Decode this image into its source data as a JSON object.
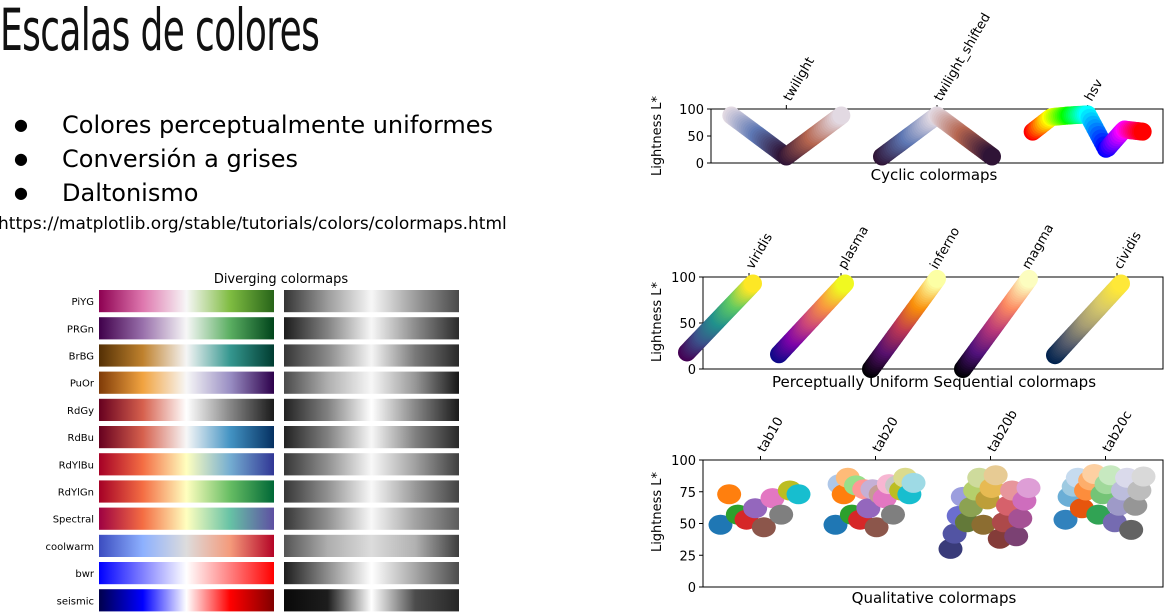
{
  "slide": {
    "title": "Escalas de colores",
    "bullets": [
      "Colores perceptualmente uniformes",
      "Conversión a grises",
      "Daltonismo"
    ],
    "url": "https://matplotlib.org/stable/tutorials/colors/colormaps.html"
  },
  "chart_data": [
    {
      "type": "heatmap",
      "title": "Diverging colormaps",
      "rows": [
        "PiYG",
        "PRGn",
        "BrBG",
        "PuOr",
        "RdGy",
        "RdBu",
        "RdYlBu",
        "RdYlGn",
        "Spectral",
        "coolwarm",
        "bwr",
        "seismic"
      ],
      "stops": [
        [
          "#8e0152",
          "#de77ae",
          "#f7f7f7",
          "#7fbc41",
          "#276419"
        ],
        [
          "#40004b",
          "#9970ab",
          "#f7f7f7",
          "#5aae61",
          "#00441b"
        ],
        [
          "#543005",
          "#bf812d",
          "#f5f5f5",
          "#35978f",
          "#003c30"
        ],
        [
          "#7f3b08",
          "#f1a340",
          "#f7f7f7",
          "#998ec3",
          "#2d004b"
        ],
        [
          "#67001f",
          "#d6604d",
          "#ffffff",
          "#878787",
          "#1a1a1a"
        ],
        [
          "#67001f",
          "#d6604d",
          "#f7f7f7",
          "#4393c3",
          "#053061"
        ],
        [
          "#a50026",
          "#f46d43",
          "#ffffbf",
          "#74add1",
          "#313695"
        ],
        [
          "#a50026",
          "#f46d43",
          "#ffffbf",
          "#66bd63",
          "#006837"
        ],
        [
          "#9e0142",
          "#f46d43",
          "#ffffbf",
          "#66c2a5",
          "#5e4fa2"
        ],
        [
          "#3b4cc0",
          "#8db0fe",
          "#dddcdc",
          "#f49a7b",
          "#b40426"
        ],
        [
          "#0000ff",
          "#8080ff",
          "#ffffff",
          "#ff8080",
          "#ff0000"
        ],
        [
          "#00004c",
          "#0000ff",
          "#ffffff",
          "#ff0000",
          "#800000"
        ]
      ],
      "grayscale": true
    },
    {
      "type": "scatter",
      "title": "Cyclic colormaps",
      "ylabel": "Lightness L*",
      "ylim": [
        0,
        100
      ],
      "yticks": [
        0,
        50,
        100
      ],
      "categories": [
        "twilight",
        "twilight_shifted",
        "hsv"
      ],
      "series": [
        {
          "name": "twilight",
          "x": [
            0,
            0.25,
            0.5,
            0.75,
            1
          ],
          "y": [
            88,
            50,
            12,
            50,
            88
          ],
          "colors": [
            "#e2d9e2",
            "#5e78b4",
            "#2f1436",
            "#b5654f",
            "#e2d9e2"
          ]
        },
        {
          "name": "twilight_shifted",
          "x": [
            0,
            0.25,
            0.5,
            0.75,
            1
          ],
          "y": [
            12,
            50,
            88,
            50,
            12
          ],
          "colors": [
            "#2f1436",
            "#5e78b4",
            "#e2d9e2",
            "#b5654f",
            "#2f1436"
          ]
        },
        {
          "name": "hsv",
          "x": [
            0,
            0.17,
            0.33,
            0.5,
            0.67,
            0.83,
            1
          ],
          "y": [
            58,
            85,
            88,
            90,
            25,
            62,
            58
          ],
          "colors": [
            "#ff0000",
            "#ffff00",
            "#00ff00",
            "#00ffff",
            "#0000ff",
            "#ff00ff",
            "#ff0000"
          ]
        }
      ]
    },
    {
      "type": "scatter",
      "title": "Perceptually Uniform Sequential colormaps",
      "ylabel": "Lightness L*",
      "ylim": [
        0,
        100
      ],
      "yticks": [
        0,
        50,
        100
      ],
      "categories": [
        "viridis",
        "plasma",
        "inferno",
        "magma",
        "cividis"
      ],
      "series": [
        {
          "name": "viridis",
          "y": [
            18,
            93
          ],
          "colors": [
            "#440154",
            "#3b528b",
            "#21918c",
            "#5ec962",
            "#fde725"
          ]
        },
        {
          "name": "plasma",
          "y": [
            16,
            93
          ],
          "colors": [
            "#0d0887",
            "#7e03a8",
            "#cc4778",
            "#f89540",
            "#f0f921"
          ]
        },
        {
          "name": "inferno",
          "y": [
            0,
            98
          ],
          "colors": [
            "#000004",
            "#57106e",
            "#bc3754",
            "#f98e09",
            "#fcffa4"
          ]
        },
        {
          "name": "magma",
          "y": [
            0,
            98
          ],
          "colors": [
            "#000004",
            "#51127c",
            "#b73779",
            "#fc8961",
            "#fcfdbf"
          ]
        },
        {
          "name": "cividis",
          "y": [
            15,
            93
          ],
          "colors": [
            "#00224e",
            "#575d6d",
            "#a59c74",
            "#d6c86a",
            "#fee838"
          ]
        }
      ]
    },
    {
      "type": "scatter",
      "title": "Qualitative colormaps",
      "ylabel": "Lightness L*",
      "ylim": [
        0,
        100
      ],
      "yticks": [
        0,
        25,
        50,
        75,
        100
      ],
      "categories": [
        "tab10",
        "tab20",
        "tab20b",
        "tab20c"
      ],
      "series": [
        {
          "name": "tab10",
          "y": [
            49,
            73,
            57,
            53,
            62,
            47,
            70,
            57,
            76,
            73
          ],
          "colors": [
            "#1f77b4",
            "#ff7f0e",
            "#2ca02c",
            "#d62728",
            "#9467bd",
            "#8c564b",
            "#e377c2",
            "#7f7f7f",
            "#bcbd22",
            "#17becf"
          ]
        },
        {
          "name": "tab20",
          "y": [
            49,
            81,
            73,
            86,
            57,
            80,
            53,
            77,
            62,
            77,
            47,
            73,
            70,
            81,
            57,
            80,
            76,
            86,
            73,
            82
          ],
          "colors": [
            "#1f77b4",
            "#aec7e8",
            "#ff7f0e",
            "#ffbb78",
            "#2ca02c",
            "#98df8a",
            "#d62728",
            "#ff9896",
            "#9467bd",
            "#c5b0d5",
            "#8c564b",
            "#c49c94",
            "#e377c2",
            "#f7b6d2",
            "#7f7f7f",
            "#c7c7c7",
            "#bcbd22",
            "#dbdb8d",
            "#17becf",
            "#9edae5"
          ]
        },
        {
          "name": "tab20b",
          "y": [
            30,
            42,
            56,
            71,
            51,
            63,
            76,
            86,
            49,
            69,
            78,
            88,
            38,
            51,
            64,
            76,
            40,
            54,
            68,
            78
          ],
          "colors": [
            "#393b79",
            "#5254a3",
            "#6b6ecf",
            "#9c9ede",
            "#637939",
            "#8ca252",
            "#b5cf6b",
            "#cedb9c",
            "#8c6d31",
            "#bd9e39",
            "#e7ba52",
            "#e7cb94",
            "#843c39",
            "#ad494a",
            "#d6616b",
            "#e7969c",
            "#7b4173",
            "#a55194",
            "#ce6dbd",
            "#de9ed6"
          ]
        },
        {
          "name": "tab20c",
          "y": [
            53,
            71,
            79,
            86,
            62,
            76,
            84,
            89,
            57,
            73,
            81,
            88,
            51,
            64,
            76,
            86,
            45,
            64,
            76,
            87
          ],
          "colors": [
            "#3182bd",
            "#6baed6",
            "#9ecae1",
            "#c6dbef",
            "#e6550d",
            "#fd8d3c",
            "#fdae6b",
            "#fdd0a2",
            "#31a354",
            "#74c476",
            "#a1d99b",
            "#c7e9c0",
            "#756bb1",
            "#9e9ac8",
            "#bcbddc",
            "#dadaeb",
            "#636363",
            "#969696",
            "#bdbdbd",
            "#d9d9d9"
          ]
        }
      ]
    }
  ]
}
